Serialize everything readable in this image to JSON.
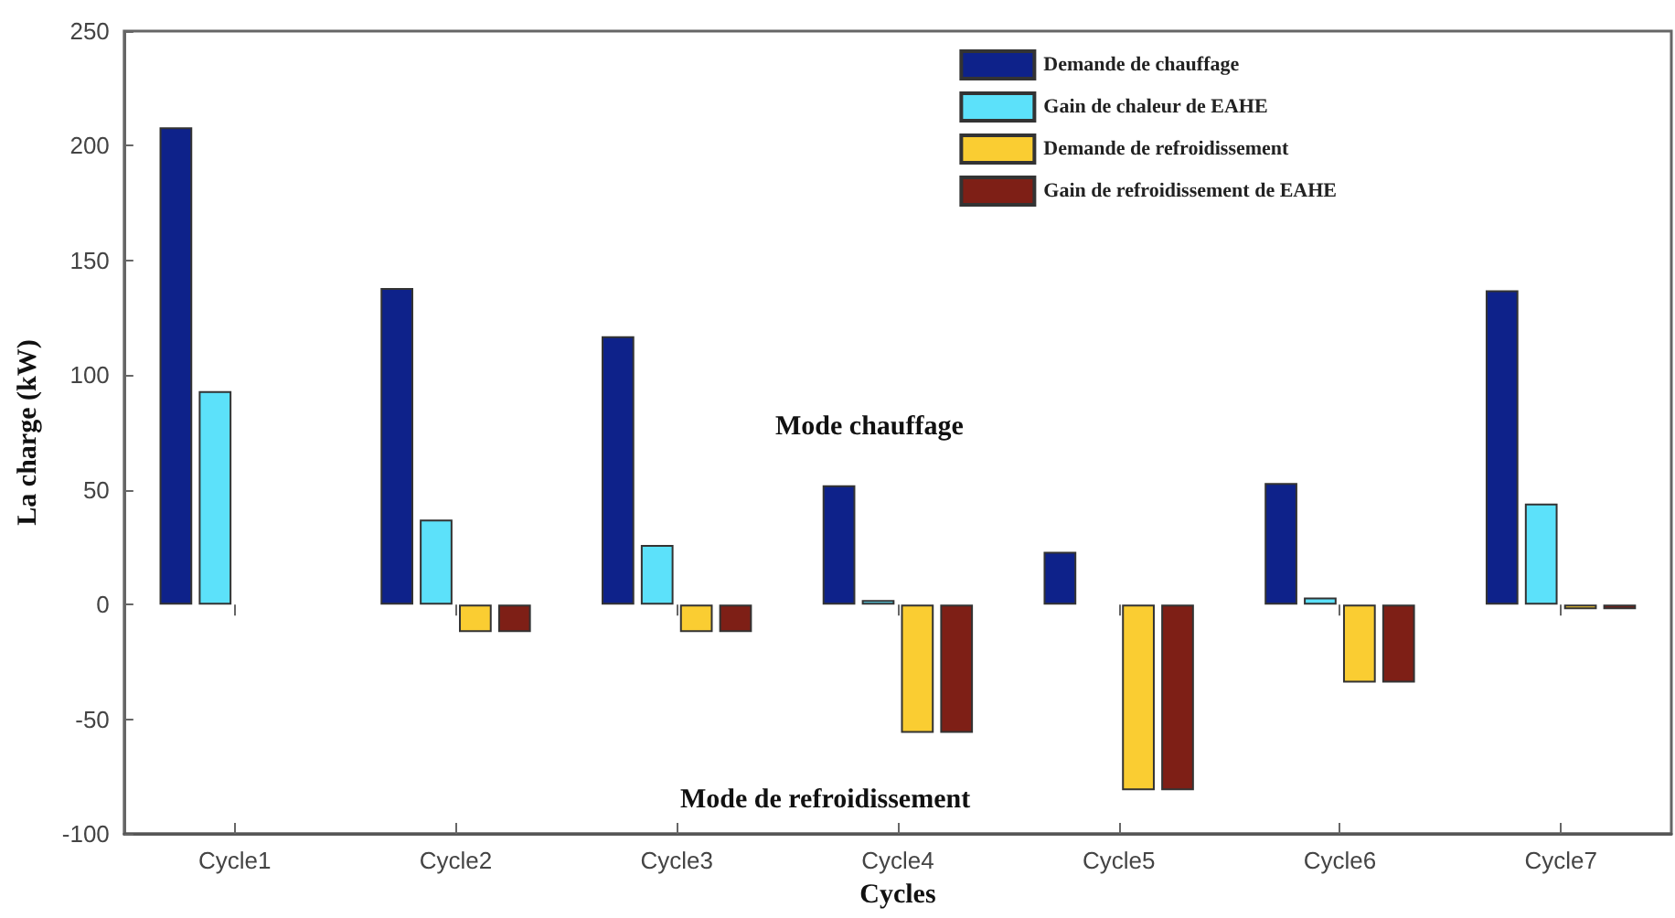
{
  "chart_data": {
    "type": "bar",
    "xlabel": "Cycles",
    "ylabel": "La charge (kW)",
    "categories": [
      "Cycle1",
      "Cycle2",
      "Cycle3",
      "Cycle4",
      "Cycle5",
      "Cycle6",
      "Cycle7"
    ],
    "series": [
      {
        "name": "Demande de chauffage",
        "color": "#0e228a",
        "values": [
          208,
          138,
          117,
          52,
          23,
          53,
          137
        ]
      },
      {
        "name": "Gain de chaleur de EAHE",
        "color": "#5ce1fa",
        "values": [
          93,
          37,
          26,
          2,
          null,
          3,
          44
        ]
      },
      {
        "name": "Demande de refroidissement",
        "color": "#facd32",
        "values": [
          null,
          -12,
          -12,
          -56,
          -81,
          -34,
          -2
        ]
      },
      {
        "name": "Gain de refroidissement de EAHE",
        "color": "#7e1f16",
        "values": [
          null,
          -12,
          -12,
          -56,
          -81,
          -34,
          -2
        ]
      }
    ],
    "ylim": [
      -100,
      250
    ],
    "yticks": [
      -100,
      -50,
      0,
      50,
      100,
      150,
      200,
      250
    ],
    "annotations": [
      "Mode chauffage",
      "Mode de refroidissement"
    ],
    "grid": false,
    "legend": "top right"
  }
}
